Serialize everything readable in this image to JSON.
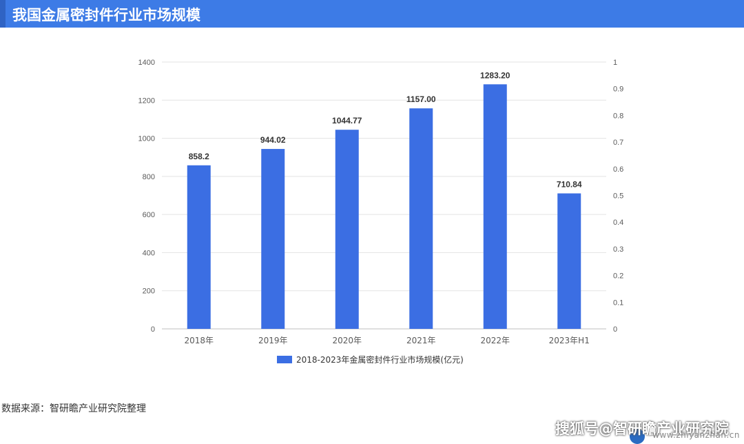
{
  "header": {
    "title": "我国金属密封件行业市场规模"
  },
  "chart_data": {
    "type": "bar",
    "categories": [
      "2018年",
      "2019年",
      "2020年",
      "2021年",
      "2022年",
      "2023年H1"
    ],
    "series": [
      {
        "name": "2018-2023年金属密封件行业市场规模(亿元)",
        "values": [
          858.2,
          944.02,
          1044.77,
          1157.0,
          1283.2,
          710.84
        ]
      }
    ],
    "value_labels": [
      "858.2",
      "944.02",
      "1044.77",
      "1157.00",
      "1283.20",
      "710.84"
    ],
    "ylim": [
      0,
      1400
    ],
    "yticks": [
      "0",
      "200",
      "400",
      "600",
      "800",
      "1000",
      "1200",
      "1400"
    ],
    "y2lim": [
      0,
      1
    ],
    "y2ticks": [
      "0",
      "0.1",
      "0.2",
      "0.3",
      "0.4",
      "0.5",
      "0.6",
      "0.7",
      "0.8",
      "0.9",
      "1"
    ],
    "grid": true,
    "legend_position": "bottom",
    "bar_color": "#3b6ee3"
  },
  "footer": {
    "source": "数据来源：智研瞻产业研究院整理",
    "watermark": "搜狐号@智研瞻产业研究院",
    "url": "www.zhiyanzhan.cn"
  }
}
